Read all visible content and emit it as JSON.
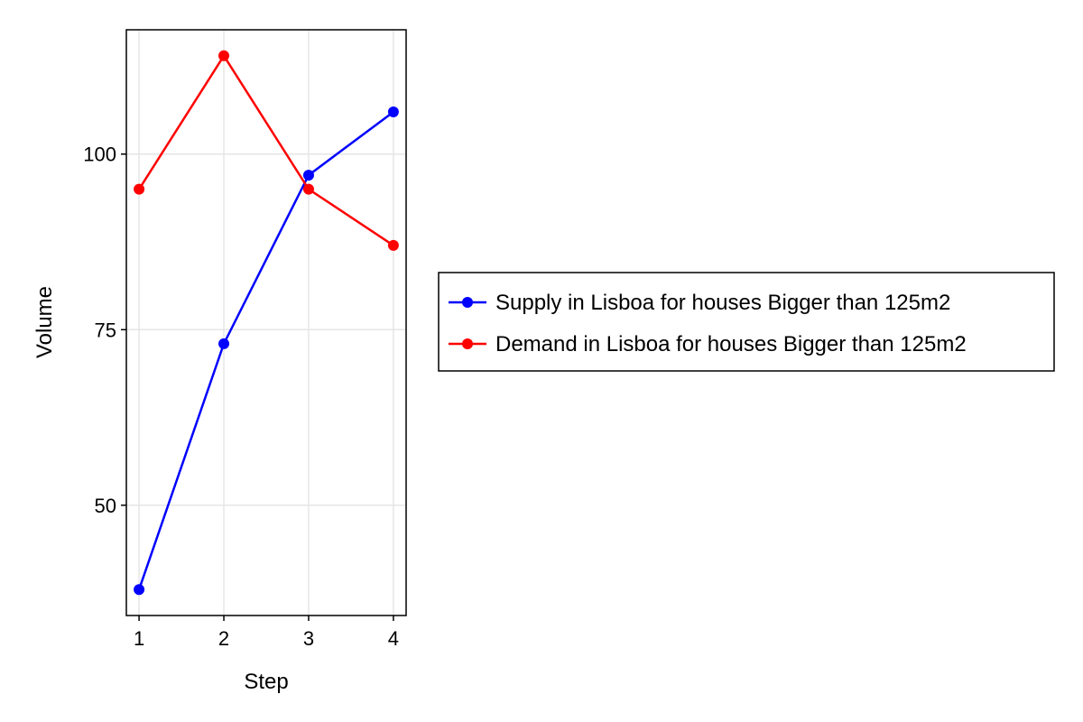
{
  "chart_data": {
    "type": "line",
    "xlabel": "Step",
    "ylabel": "Volume",
    "x": [
      1,
      2,
      3,
      4
    ],
    "xlim": [
      0.85,
      4.15
    ],
    "ylim": [
      34.3,
      117.7
    ],
    "xticks": [
      1,
      2,
      3,
      4
    ],
    "yticks": [
      50,
      75,
      100
    ],
    "grid": true,
    "legend_position": "right",
    "series": [
      {
        "name": "Supply in Lisboa for houses Bigger than 125m2",
        "values": [
          38,
          73,
          97,
          106
        ],
        "color": "#0000ff"
      },
      {
        "name": "Demand in Lisboa for houses Bigger than 125m2",
        "values": [
          95,
          114,
          95,
          87
        ],
        "color": "#ff0000"
      }
    ]
  }
}
